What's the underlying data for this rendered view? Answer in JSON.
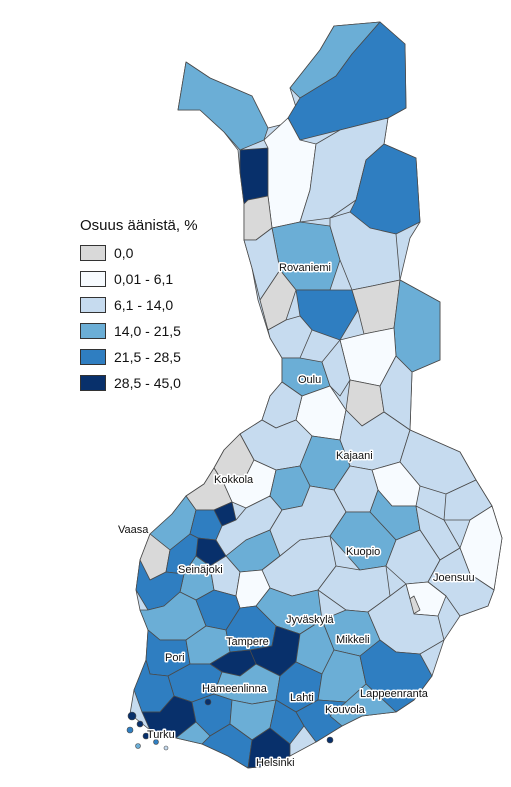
{
  "legend": {
    "title": "Osuus äänistä, %",
    "classes": [
      {
        "label": "0,0",
        "color": "#d9d9d9"
      },
      {
        "label": "0,01 - 6,1",
        "color": "#f7fbff"
      },
      {
        "label": "6,1 - 14,0",
        "color": "#c6dbef"
      },
      {
        "label": "14,0 - 21,5",
        "color": "#6baed6"
      },
      {
        "label": "21,5 - 28,5",
        "color": "#2f7ec1"
      },
      {
        "label": "28,5 - 45,0",
        "color": "#08306b"
      }
    ]
  },
  "cities": [
    {
      "name": "Rovaniemi"
    },
    {
      "name": "Oulu"
    },
    {
      "name": "Kajaani"
    },
    {
      "name": "Kokkola"
    },
    {
      "name": "Vaasa"
    },
    {
      "name": "Seinäjoki"
    },
    {
      "name": "Kuopio"
    },
    {
      "name": "Joensuu"
    },
    {
      "name": "Jyväskylä"
    },
    {
      "name": "Tampere"
    },
    {
      "name": "Mikkeli"
    },
    {
      "name": "Pori"
    },
    {
      "name": "Hämeenlinna"
    },
    {
      "name": "Lahti"
    },
    {
      "name": "Lappeenranta"
    },
    {
      "name": "Kouvola"
    },
    {
      "name": "Turku"
    },
    {
      "name": "Helsinki"
    }
  ]
}
